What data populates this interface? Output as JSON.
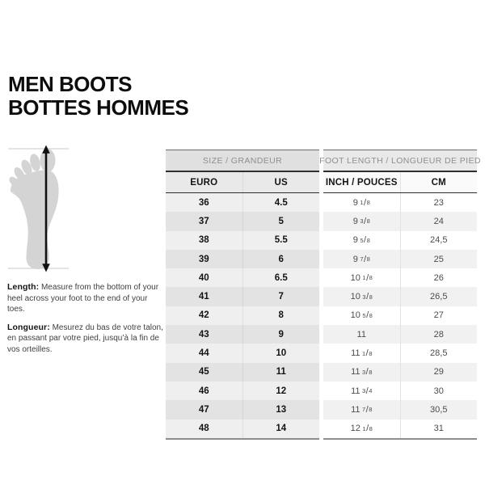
{
  "title": {
    "line1": "MEN BOOTS",
    "line2": "BOTTES HOMMES"
  },
  "figure": {
    "description": "foot silhouette with length measurement arrow"
  },
  "instructions": [
    {
      "label": "Length:",
      "text": " Measure from the bottom of your heel across your foot to the end of your toes."
    },
    {
      "label": "Longueur:",
      "text": " Mesurez du bas de votre talon, en passant par votre pied, jusqu’à la fin de vos orteilles."
    }
  ],
  "table": {
    "group_headers": {
      "size": "SIZE / GRANDEUR",
      "foot_length": "FOOT LENGTH / LONGUEUR DE PIED"
    },
    "columns": {
      "euro": "EURO",
      "us": "US",
      "inch": "INCH / POUCES",
      "cm": "CM"
    },
    "rows": [
      {
        "euro": "36",
        "us": "4.5",
        "inch": "9 1/8",
        "cm": "23"
      },
      {
        "euro": "37",
        "us": "5",
        "inch": "9 3/8",
        "cm": "24"
      },
      {
        "euro": "38",
        "us": "5.5",
        "inch": "9 5/8",
        "cm": "24,5"
      },
      {
        "euro": "39",
        "us": "6",
        "inch": "9 7/8",
        "cm": "25"
      },
      {
        "euro": "40",
        "us": "6.5",
        "inch": "10 1/8",
        "cm": "26"
      },
      {
        "euro": "41",
        "us": "7",
        "inch": "10 3/8",
        "cm": "26,5"
      },
      {
        "euro": "42",
        "us": "8",
        "inch": "10 5/8",
        "cm": "27"
      },
      {
        "euro": "43",
        "us": "9",
        "inch": "11",
        "cm": "28"
      },
      {
        "euro": "44",
        "us": "10",
        "inch": "11 1/8",
        "cm": "28,5"
      },
      {
        "euro": "45",
        "us": "11",
        "inch": "11 3/8",
        "cm": "29"
      },
      {
        "euro": "46",
        "us": "12",
        "inch": "11 3/4",
        "cm": "30"
      },
      {
        "euro": "47",
        "us": "13",
        "inch": "11 7/8",
        "cm": "30,5"
      },
      {
        "euro": "48",
        "us": "14",
        "inch": "12 1/8",
        "cm": "31"
      }
    ]
  },
  "colors": {
    "accent_dark": "#2f2f2f",
    "header_text": "#8f8f8f",
    "body_gray_text": "#4c4c4c",
    "left_row_even": "#efefef",
    "left_row_odd": "#e3e3e3",
    "right_row_even": "#ffffff",
    "right_row_odd": "#f1f1f1",
    "foot_fill": "#d4d4d4",
    "arrow": "#111111"
  }
}
